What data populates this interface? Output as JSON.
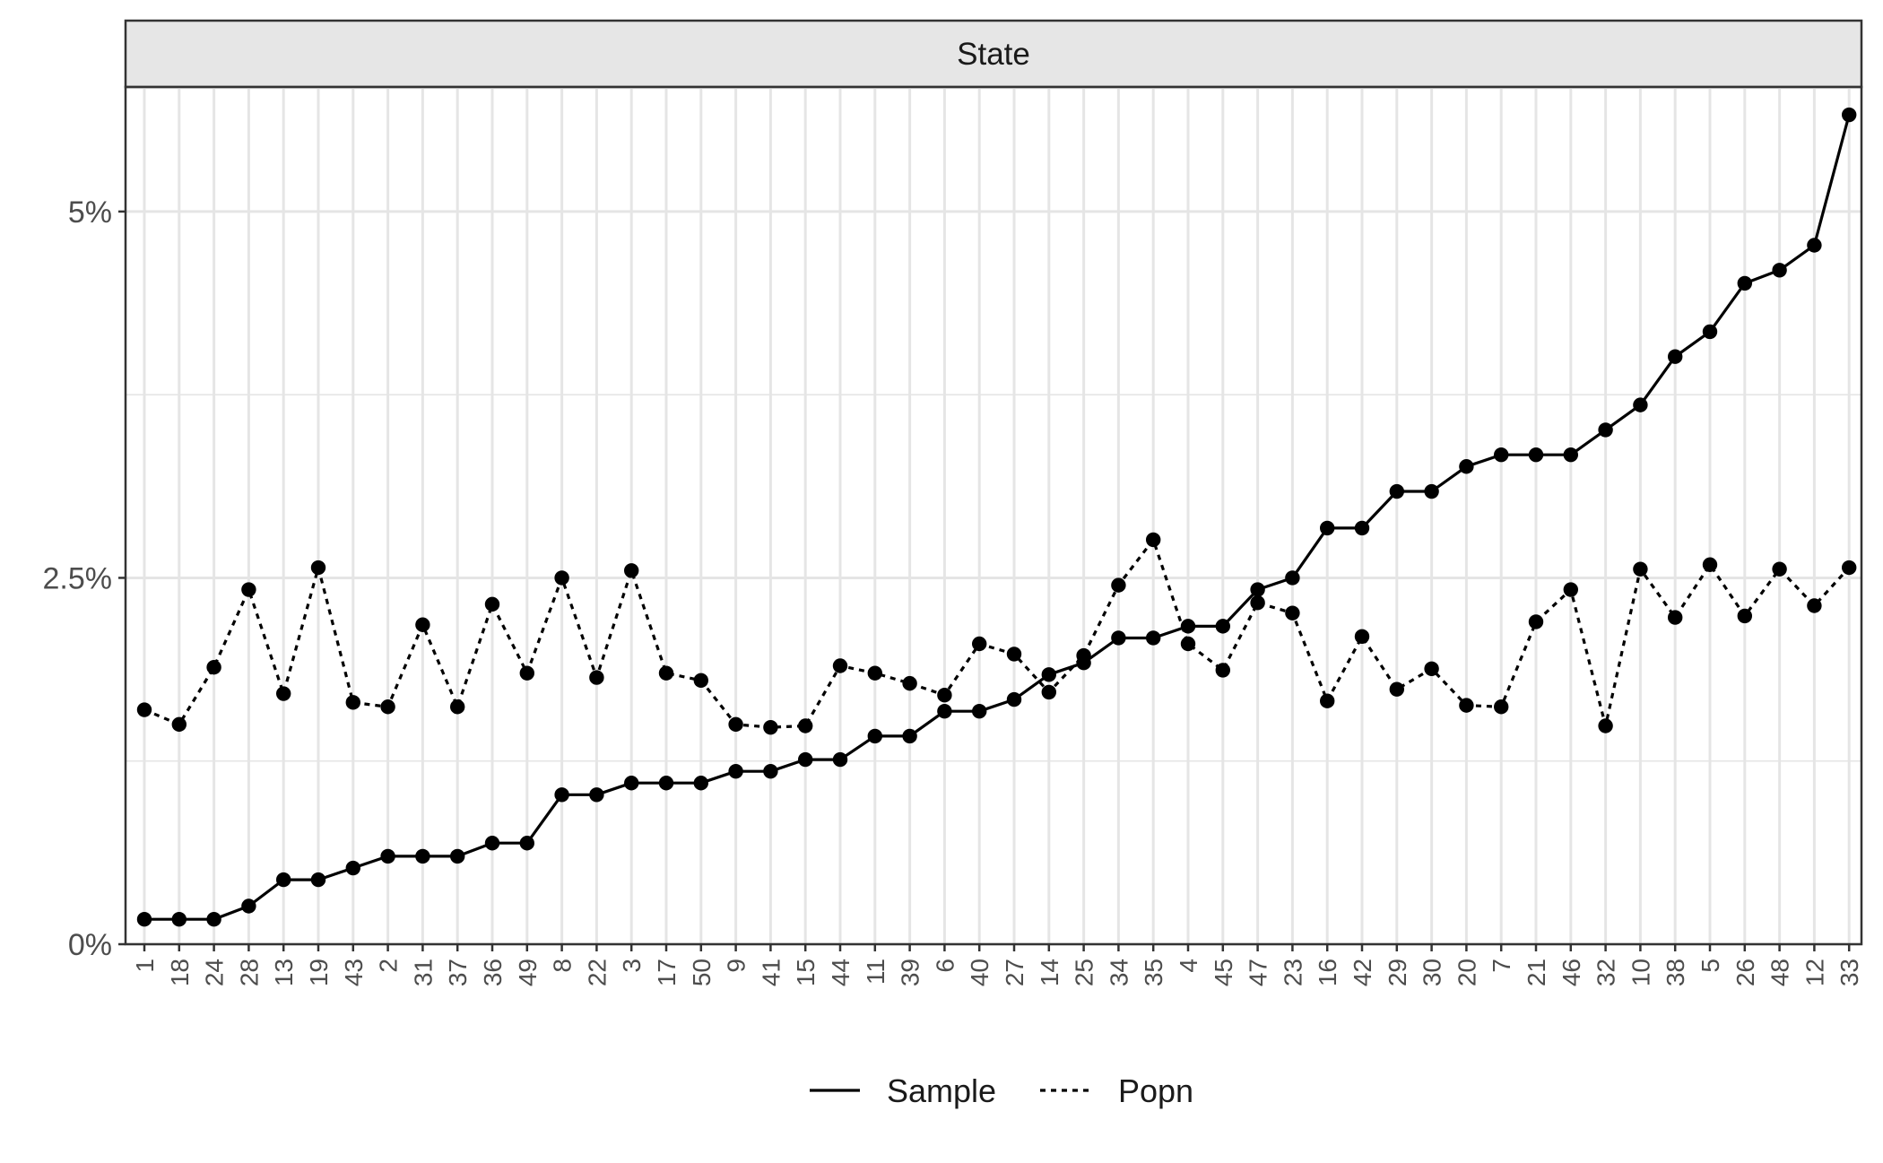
{
  "chart_data": {
    "type": "line",
    "facet_label": "State",
    "categories": [
      "1",
      "18",
      "24",
      "28",
      "13",
      "19",
      "43",
      "2",
      "31",
      "37",
      "36",
      "49",
      "8",
      "22",
      "3",
      "17",
      "50",
      "9",
      "41",
      "15",
      "44",
      "11",
      "39",
      "6",
      "40",
      "27",
      "14",
      "25",
      "34",
      "35",
      "4",
      "45",
      "47",
      "23",
      "16",
      "42",
      "29",
      "30",
      "20",
      "7",
      "21",
      "46",
      "32",
      "10",
      "38",
      "5",
      "26",
      "48",
      "12",
      "33"
    ],
    "series": [
      {
        "name": "Sample",
        "line_style": "solid",
        "values": [
          0.17,
          0.17,
          0.17,
          0.26,
          0.44,
          0.44,
          0.52,
          0.6,
          0.6,
          0.6,
          0.69,
          0.69,
          1.02,
          1.02,
          1.1,
          1.1,
          1.1,
          1.18,
          1.18,
          1.26,
          1.26,
          1.42,
          1.42,
          1.59,
          1.59,
          1.67,
          1.84,
          1.92,
          2.09,
          2.09,
          2.17,
          2.17,
          2.42,
          2.5,
          2.84,
          2.84,
          3.09,
          3.09,
          3.26,
          3.34,
          3.34,
          3.34,
          3.51,
          3.68,
          4.01,
          4.18,
          4.51,
          4.6,
          4.77,
          5.66
        ]
      },
      {
        "name": "Popn",
        "line_style": "dotted",
        "values": [
          1.6,
          1.5,
          1.89,
          2.42,
          1.71,
          2.57,
          1.65,
          1.62,
          2.18,
          1.62,
          2.32,
          1.85,
          2.5,
          1.82,
          2.55,
          1.85,
          1.8,
          1.5,
          1.48,
          1.49,
          1.9,
          1.85,
          1.78,
          1.7,
          2.05,
          1.98,
          1.72,
          1.97,
          2.45,
          2.76,
          2.05,
          1.87,
          2.33,
          2.26,
          1.66,
          2.1,
          1.74,
          1.88,
          1.63,
          1.62,
          2.2,
          2.42,
          1.49,
          2.56,
          2.23,
          2.59,
          2.24,
          2.56,
          2.31,
          2.57
        ]
      }
    ],
    "y_tick_labels": [
      {
        "value": 0,
        "label": "0%"
      },
      {
        "value": 2.5,
        "label": "2.5%"
      },
      {
        "value": 5,
        "label": "5%"
      }
    ],
    "y_minor_ticks": [
      1.25,
      3.75
    ],
    "ylim": [
      0,
      5.85
    ],
    "xlabel": "",
    "ylabel": "",
    "grid": true,
    "legend_position": "bottom",
    "legend": [
      {
        "label": "Sample",
        "line_style": "solid"
      },
      {
        "label": "Popn",
        "line_style": "dotted"
      }
    ],
    "colors": {
      "line": "#000000",
      "grid": "#e5e5e5",
      "strip_fill": "#e6e6e6",
      "panel_border": "#333333",
      "text": "#333333"
    }
  }
}
